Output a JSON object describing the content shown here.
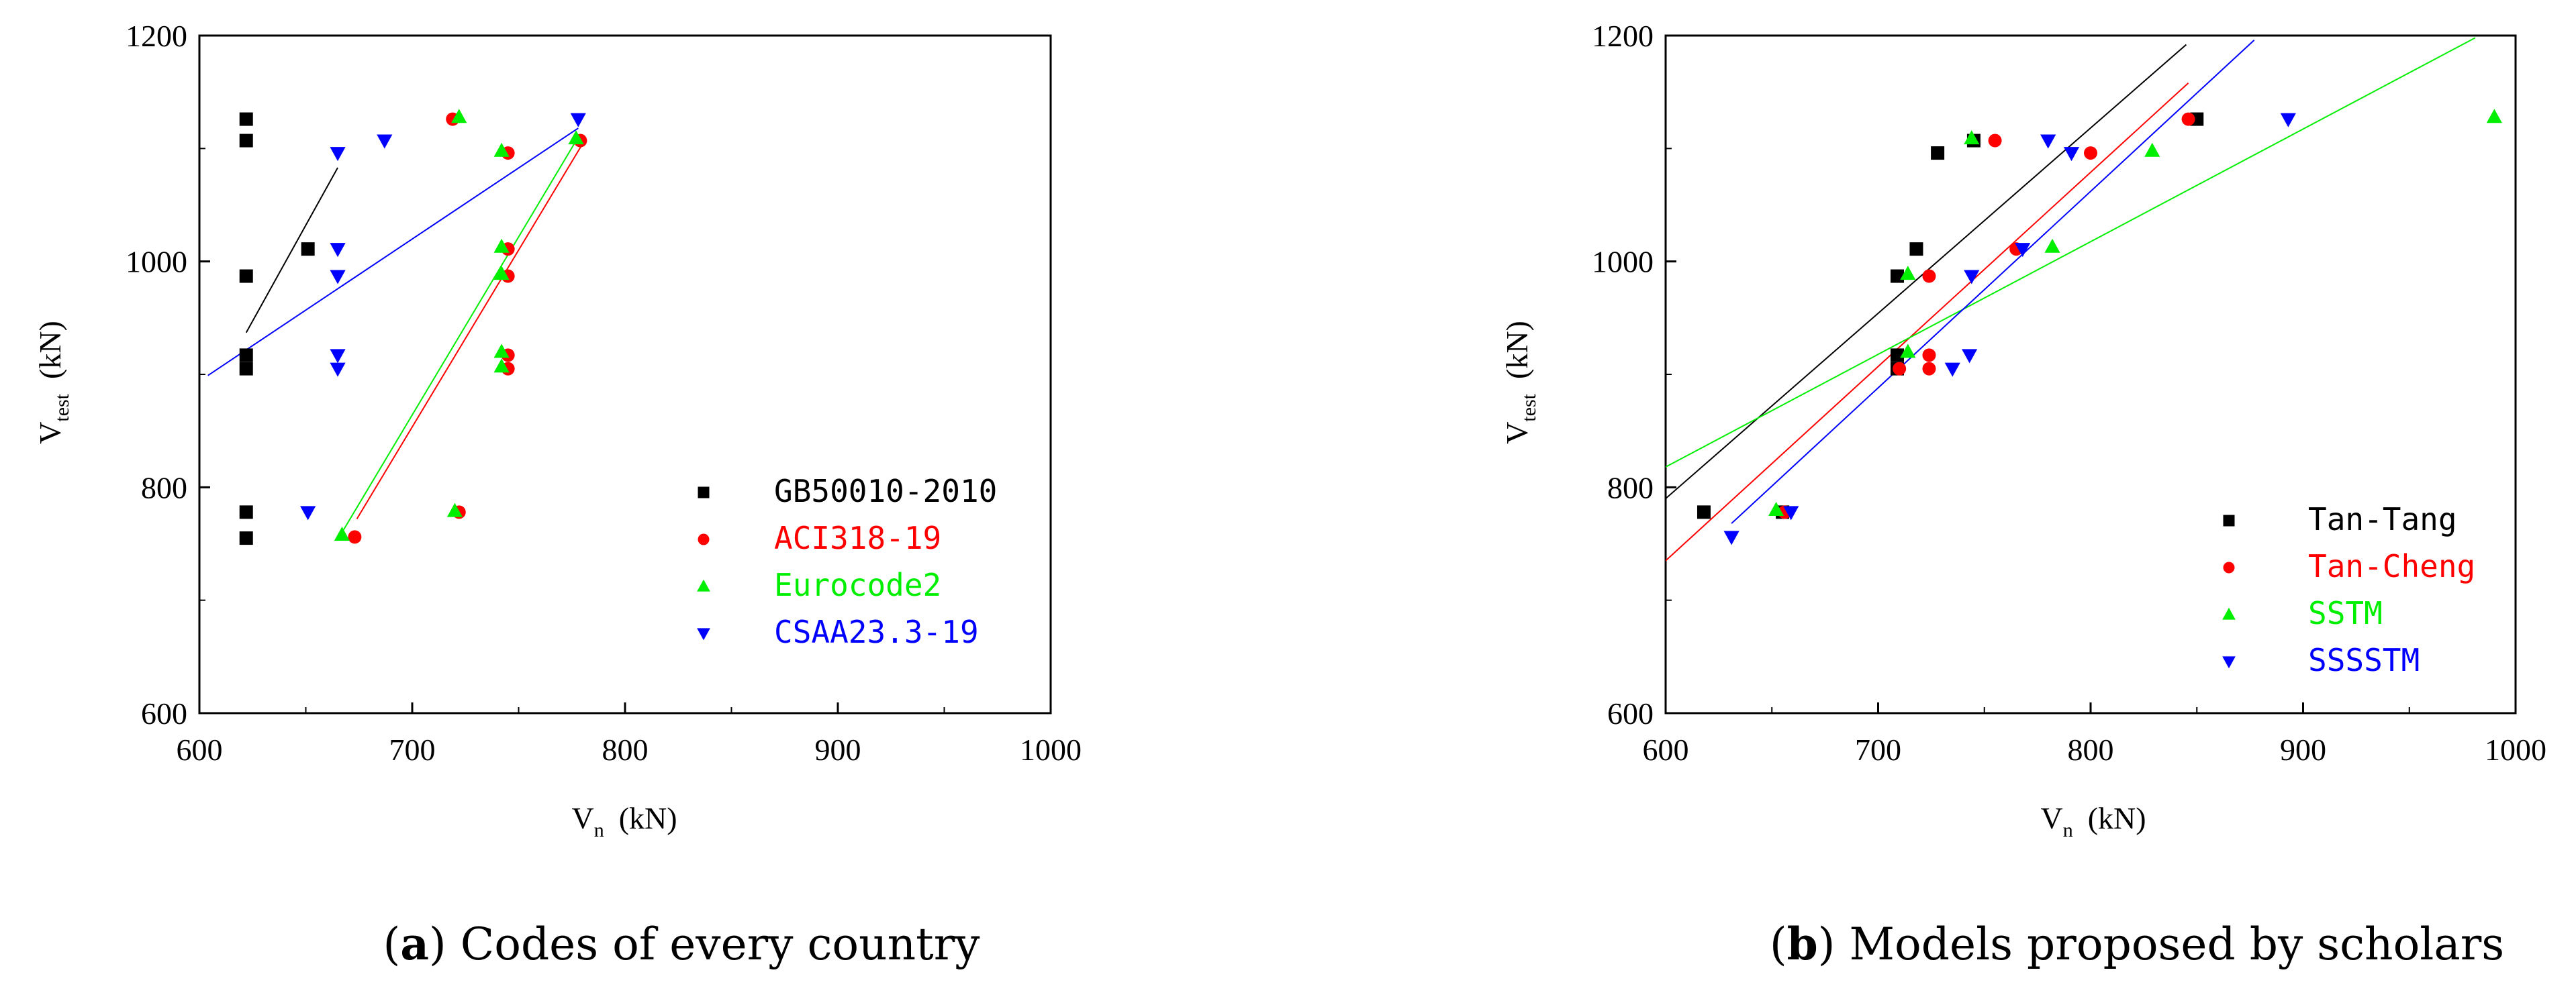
{
  "chart_data": [
    {
      "type": "scatter",
      "xlabel": "V",
      "xlabel_sub": "n",
      "xlabel_unit": "(kN)",
      "ylabel": "V",
      "ylabel_sub": "test",
      "ylabel_unit": "(kN)",
      "xlim": [
        600,
        1000
      ],
      "ylim": [
        600,
        1200
      ],
      "xticks": [
        600,
        700,
        800,
        900,
        1000
      ],
      "yticks": [
        600,
        800,
        1000,
        1200
      ],
      "grid": false,
      "legend_position": "bottom-right",
      "caption_label": "a",
      "caption_text": "Codes of every country",
      "series": [
        {
          "name": "GB50010-2010",
          "color": "#000000",
          "marker": "square",
          "points": [
            [
              622,
              1126
            ],
            [
              622,
              1107
            ],
            [
              622,
              987
            ],
            [
              622,
              917
            ],
            [
              622,
              905
            ],
            [
              622,
              778
            ],
            [
              622,
              755
            ],
            [
              651,
              1011
            ]
          ],
          "fit_line": [
            [
              622,
              937
            ],
            [
              665,
              1083
            ]
          ]
        },
        {
          "name": "ACI318-19",
          "color": "#ff0000",
          "marker": "circle",
          "points": [
            [
              673,
              756
            ],
            [
              719,
              1126
            ],
            [
              722,
              778
            ],
            [
              745,
              1096
            ],
            [
              745,
              1011
            ],
            [
              745,
              987
            ],
            [
              745,
              917
            ],
            [
              745,
              905
            ],
            [
              779,
              1107
            ]
          ],
          "fit_line": [
            [
              674,
              772
            ],
            [
              780,
              1104
            ]
          ]
        },
        {
          "name": "Eurocode2",
          "color": "#00ee00",
          "marker": "triangle-up",
          "points": [
            [
              667,
              758
            ],
            [
              720,
              779
            ],
            [
              722,
              1128
            ],
            [
              742,
              1098
            ],
            [
              742,
              1013
            ],
            [
              742,
              989
            ],
            [
              742,
              920
            ],
            [
              742,
              907
            ],
            [
              777,
              1109
            ]
          ],
          "fit_line": [
            [
              667,
              760
            ],
            [
              778,
              1110
            ]
          ]
        },
        {
          "name": "CSAA23.3-19",
          "color": "#0000ff",
          "marker": "triangle-down",
          "points": [
            [
              651,
              778
            ],
            [
              665,
              1096
            ],
            [
              665,
              1011
            ],
            [
              665,
              987
            ],
            [
              665,
              917
            ],
            [
              665,
              905
            ],
            [
              687,
              1107
            ],
            [
              778,
              1126
            ]
          ],
          "fit_line": [
            [
              604,
              899
            ],
            [
              778,
              1118
            ]
          ]
        }
      ]
    },
    {
      "type": "scatter",
      "xlabel": "V",
      "xlabel_sub": "n",
      "xlabel_unit": "(kN)",
      "ylabel": "V",
      "ylabel_sub": "test",
      "ylabel_unit": "(kN)",
      "xlim": [
        600,
        1000
      ],
      "ylim": [
        600,
        1200
      ],
      "xticks": [
        600,
        700,
        800,
        900,
        1000
      ],
      "yticks": [
        600,
        800,
        1000,
        1200
      ],
      "grid": false,
      "legend_position": "bottom-right",
      "caption_label": "b",
      "caption_text": "Models proposed by scholars",
      "series": [
        {
          "name": "Tan-Tang",
          "color": "#000000",
          "marker": "square",
          "points": [
            [
              618,
              778
            ],
            [
              655,
              778
            ],
            [
              709,
              987
            ],
            [
              709,
              917
            ],
            [
              709,
              905
            ],
            [
              718,
              1011
            ],
            [
              728,
              1096
            ],
            [
              745,
              1107
            ],
            [
              850,
              1126
            ]
          ],
          "fit_line": [
            [
              600,
              790
            ],
            [
              845,
              1192
            ]
          ]
        },
        {
          "name": "Tan-Cheng",
          "color": "#ff0000",
          "marker": "circle",
          "points": [
            [
              656,
              778
            ],
            [
              710,
              905
            ],
            [
              724,
              987
            ],
            [
              724,
              917
            ],
            [
              724,
              905
            ],
            [
              755,
              1107
            ],
            [
              765,
              1011
            ],
            [
              800,
              1096
            ],
            [
              846,
              1126
            ]
          ],
          "fit_line": [
            [
              600,
              735
            ],
            [
              846,
              1158
            ]
          ]
        },
        {
          "name": "SSTM",
          "color": "#00ee00",
          "marker": "triangle-up",
          "points": [
            [
              652,
              780
            ],
            [
              714,
              989
            ],
            [
              714,
              920
            ],
            [
              744,
              1109
            ],
            [
              782,
              1013
            ],
            [
              829,
              1098
            ],
            [
              990,
              1128
            ]
          ],
          "fit_line": [
            [
              600,
              818
            ],
            [
              981,
              1198
            ]
          ]
        },
        {
          "name": "SSSSTM",
          "color": "#0000ff",
          "marker": "triangle-down",
          "points": [
            [
              631,
              756
            ],
            [
              659,
              778
            ],
            [
              735,
              905
            ],
            [
              743,
              917
            ],
            [
              744,
              987
            ],
            [
              768,
              1011
            ],
            [
              780,
              1107
            ],
            [
              791,
              1096
            ],
            [
              893,
              1126
            ]
          ],
          "fit_line": [
            [
              631,
              768
            ],
            [
              877,
              1196
            ]
          ]
        }
      ]
    }
  ]
}
